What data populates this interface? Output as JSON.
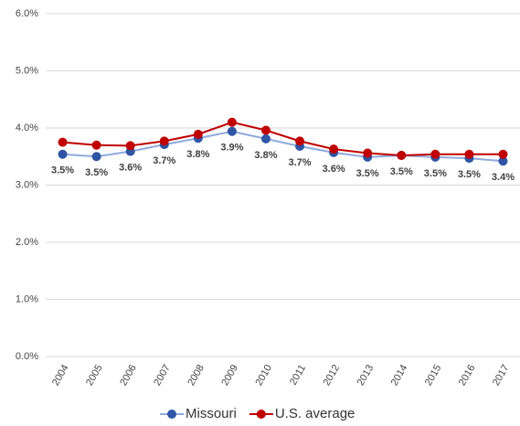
{
  "chart_data": {
    "type": "line",
    "categories": [
      "2004",
      "2005",
      "2006",
      "2007",
      "2008",
      "2009",
      "2010",
      "2011",
      "2012",
      "2013",
      "2014",
      "2015",
      "2016",
      "2017"
    ],
    "series": [
      {
        "name": "Missouri",
        "color": "#2f55a4",
        "line_color": "#8faadc",
        "values": [
          3.54,
          3.5,
          3.59,
          3.71,
          3.82,
          3.94,
          3.81,
          3.68,
          3.57,
          3.49,
          3.52,
          3.49,
          3.47,
          3.42
        ],
        "value_labels": [
          "3.5%",
          "3.5%",
          "3.6%",
          "3.7%",
          "3.8%",
          "3.9%",
          "3.8%",
          "3.7%",
          "3.6%",
          "3.5%",
          "3.5%",
          "3.5%",
          "3.5%",
          "3.4%"
        ]
      },
      {
        "name": "U.S. average",
        "color": "#c00000",
        "line_color": "#c00000",
        "values": [
          3.75,
          3.7,
          3.69,
          3.77,
          3.89,
          4.1,
          3.96,
          3.77,
          3.63,
          3.56,
          3.52,
          3.54,
          3.54,
          3.54
        ]
      }
    ],
    "ylim": [
      0,
      6
    ],
    "yticks": [
      {
        "value": 0,
        "label": "0.0%"
      },
      {
        "value": 1,
        "label": "1.0%"
      },
      {
        "value": 2,
        "label": "2.0%"
      },
      {
        "value": 3,
        "label": "3.0%"
      },
      {
        "value": 4,
        "label": "4.0%"
      },
      {
        "value": 5,
        "label": "5.0%"
      },
      {
        "value": 6,
        "label": "6.0%"
      }
    ],
    "grid": true,
    "legend": "bottom"
  }
}
